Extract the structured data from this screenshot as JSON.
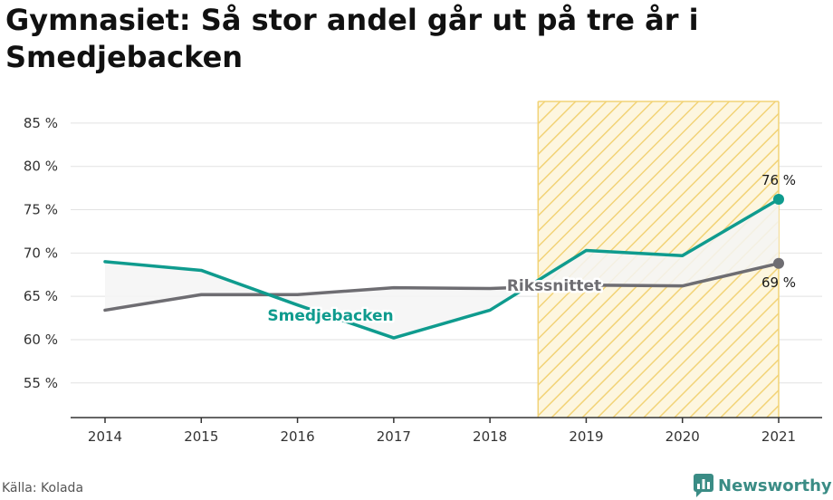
{
  "title": "Gymnasiet: Så stor andel går ut på tre år i Smedjebacken",
  "source": "Källa: Kolada",
  "brand": {
    "name": "Newsworthy",
    "icon": "newsworthy-logo-icon"
  },
  "colors": {
    "local": "#0f9b8e",
    "national": "#6e6d72",
    "highlight_stripes": "#f2d377",
    "highlight_bg": "#fdf6df",
    "diff_fill": "#f4f4f4",
    "grid": "#e2e2e2",
    "axis": "#333333"
  },
  "chart_data": {
    "type": "line",
    "title": "Gymnasiet: Så stor andel går ut på tre år i Smedjebacken",
    "categories": [
      "2014",
      "2015",
      "2016",
      "2017",
      "2018",
      "2019",
      "2020",
      "2021"
    ],
    "series": [
      {
        "name": "Smedjebacken",
        "values": [
          69.0,
          68.0,
          64.0,
          60.2,
          63.4,
          70.3,
          69.7,
          76.2
        ]
      },
      {
        "name": "Rikssnittet",
        "values": [
          63.4,
          65.2,
          65.2,
          66.0,
          65.9,
          66.3,
          66.2,
          68.8
        ]
      }
    ],
    "ylim": [
      51,
      87.5
    ],
    "yticks": [
      55,
      60,
      65,
      70,
      75,
      80,
      85
    ],
    "ytick_labels": [
      "55 %",
      "60 %",
      "65 %",
      "70 %",
      "75 %",
      "80 %",
      "85 %"
    ],
    "grid": true,
    "highlight_range": [
      "2019",
      "2021"
    ],
    "end_labels": {
      "Smedjebacken": "76 %",
      "Rikssnittet": "69 %"
    },
    "series_labels": {
      "Smedjebacken": "Smedjebacken",
      "Rikssnittet": "Rikssnittet"
    }
  }
}
